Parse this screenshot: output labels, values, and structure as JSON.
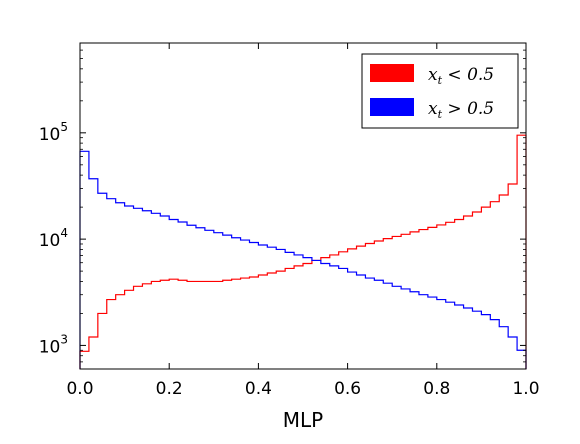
{
  "chart_data": {
    "type": "histogram",
    "xlabel": "MLP",
    "ylabel": "",
    "xlim": [
      0.0,
      1.0
    ],
    "ylim": [
      600,
      700000
    ],
    "yscale": "log",
    "grid": false,
    "legend_position": "top-right",
    "x_ticks": [
      "0.0",
      "0.2",
      "0.4",
      "0.6",
      "0.8",
      "1.0"
    ],
    "y_ticks": [
      {
        "base": "10",
        "exp": "3",
        "value": 1000
      },
      {
        "base": "10",
        "exp": "4",
        "value": 10000
      },
      {
        "base": "10",
        "exp": "5",
        "value": 100000
      }
    ],
    "bin_edges": [
      0.0,
      0.02,
      0.04,
      0.06,
      0.08,
      0.1,
      0.12,
      0.14,
      0.16,
      0.18,
      0.2,
      0.22,
      0.24,
      0.26,
      0.28,
      0.3,
      0.32,
      0.34,
      0.36,
      0.38,
      0.4,
      0.42,
      0.44,
      0.46,
      0.48,
      0.5,
      0.52,
      0.54,
      0.56,
      0.58,
      0.6,
      0.62,
      0.64,
      0.66,
      0.68,
      0.7,
      0.72,
      0.74,
      0.76,
      0.78,
      0.8,
      0.82,
      0.84,
      0.86,
      0.88,
      0.9,
      0.92,
      0.94,
      0.96,
      0.98,
      1.0
    ],
    "series": [
      {
        "name_base": "x",
        "name_sub": "t",
        "name_rest": " < 0.5",
        "color": "#ff0000",
        "values": [
          880,
          1200,
          2000,
          2700,
          3000,
          3300,
          3600,
          3800,
          4000,
          4100,
          4200,
          4100,
          4000,
          4000,
          4000,
          4000,
          4100,
          4200,
          4300,
          4400,
          4600,
          4800,
          5000,
          5300,
          5600,
          5900,
          6300,
          6700,
          7100,
          7600,
          8100,
          8600,
          9100,
          9600,
          10100,
          10600,
          11100,
          11700,
          12300,
          12900,
          13600,
          14400,
          15300,
          16500,
          18000,
          20000,
          22500,
          26000,
          33000,
          95000
        ]
      },
      {
        "name_base": "x",
        "name_sub": "t",
        "name_rest": " > 0.5",
        "color": "#0000ff",
        "values": [
          67000,
          37000,
          27000,
          24000,
          22000,
          20500,
          19500,
          18500,
          17500,
          16500,
          15300,
          14500,
          13500,
          12800,
          12100,
          11500,
          10900,
          10300,
          9800,
          9300,
          8800,
          8400,
          8000,
          7500,
          7100,
          6700,
          6300,
          5900,
          5600,
          5300,
          4900,
          4600,
          4300,
          4100,
          3850,
          3600,
          3400,
          3200,
          3000,
          2850,
          2700,
          2550,
          2400,
          2250,
          2100,
          1950,
          1750,
          1500,
          1200,
          900
        ]
      }
    ]
  }
}
